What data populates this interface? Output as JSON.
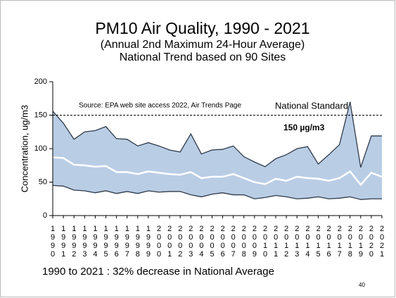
{
  "chart_data": {
    "type": "line",
    "title": "PM10 Air Quality, 1990 - 2021",
    "subtitle": [
      "(Annual 2nd Maximum 24-Hour Average)",
      "National Trend based on 90 Sites"
    ],
    "y_label": "Concentration, ug/m3",
    "source": "Source: EPA web site access 2022, Air Trends Page",
    "standard": 150,
    "standard_label": "National Standard",
    "standard_value_label": "150 µg/m3",
    "footer": "1990 to 2021 :  32% decrease in National Average",
    "page_number": "40",
    "x": [
      1990,
      1991,
      1992,
      1993,
      1994,
      1995,
      1996,
      1997,
      1998,
      1999,
      2000,
      2001,
      2002,
      2003,
      2004,
      2005,
      2006,
      2007,
      2008,
      2009,
      2010,
      2011,
      2012,
      2013,
      2014,
      2015,
      2016,
      2017,
      2018,
      2019,
      2020,
      2021
    ],
    "series": [
      {
        "color": "#2f3a4a",
        "values": [
          156,
          138,
          114,
          125,
          127,
          133,
          115,
          114,
          104,
          109,
          104,
          98,
          95,
          122,
          92,
          98,
          99,
          104,
          88,
          80,
          73,
          85,
          91,
          100,
          103,
          77,
          91,
          106,
          170,
          72,
          119,
          119
        ]
      },
      {
        "color": "#ffffff",
        "values": [
          87,
          86,
          76,
          75,
          73,
          74,
          65,
          65,
          62,
          66,
          64,
          62,
          61,
          65,
          56,
          58,
          58,
          62,
          56,
          50,
          47,
          55,
          52,
          58,
          56,
          55,
          52,
          56,
          66,
          46,
          64,
          58
        ]
      },
      {
        "color": "#2f3a4a",
        "values": [
          45,
          44,
          38,
          37,
          34,
          37,
          33,
          36,
          33,
          37,
          35,
          36,
          36,
          31,
          28,
          32,
          34,
          31,
          31,
          25,
          27,
          30,
          28,
          25,
          26,
          28,
          25,
          26,
          28,
          24,
          25,
          25
        ]
      }
    ],
    "band_color": "#b9cde5",
    "xlim": [
      1990,
      2021
    ],
    "ylim": [
      0,
      200
    ],
    "yticks": [
      0,
      50,
      100,
      150,
      200
    ]
  }
}
